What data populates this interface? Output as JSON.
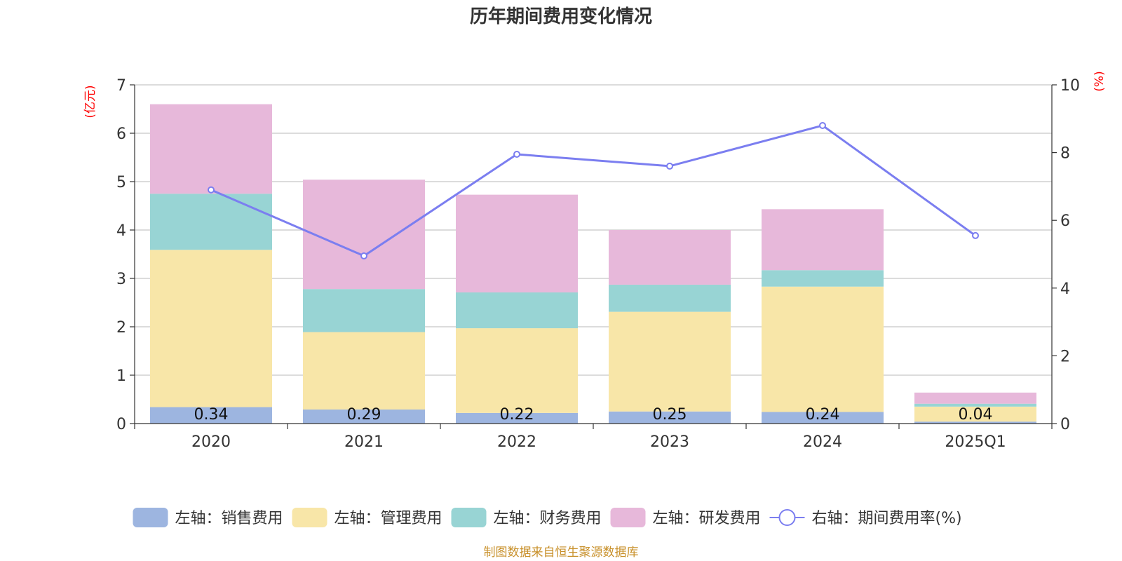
{
  "chart_data": {
    "type": "bar",
    "stacked": true,
    "title": "历年期间费用变化情况",
    "left_unit": "(亿元)",
    "right_unit": "(%)",
    "categories": [
      "2020",
      "2021",
      "2022",
      "2023",
      "2024",
      "2025Q1"
    ],
    "ylim_left": [
      0,
      7
    ],
    "yticks_left": [
      "0",
      "1",
      "2",
      "3",
      "4",
      "5",
      "6",
      "7"
    ],
    "ylim_right": [
      0,
      10
    ],
    "yticks_right": [
      "0",
      "2",
      "4",
      "6",
      "8",
      "10"
    ],
    "grid": true,
    "legend_position": "bottom",
    "series": [
      {
        "name": "左轴：销售费用",
        "type": "bar",
        "axis": "left",
        "color": "#9db5e0",
        "values": [
          0.34,
          0.29,
          0.22,
          0.25,
          0.24,
          0.04
        ],
        "labels": [
          "0.34",
          "0.29",
          "0.22",
          "0.25",
          "0.24",
          "0.04"
        ]
      },
      {
        "name": "左轴：管理费用",
        "type": "bar",
        "axis": "left",
        "color": "#f8e6a8",
        "values": [
          3.25,
          1.6,
          1.75,
          2.06,
          2.59,
          0.31
        ]
      },
      {
        "name": "左轴：财务费用",
        "type": "bar",
        "axis": "left",
        "color": "#98d4d4",
        "values": [
          1.16,
          0.89,
          0.74,
          0.56,
          0.34,
          0.06
        ]
      },
      {
        "name": "左轴：研发费用",
        "type": "bar",
        "axis": "left",
        "color": "#e7b8da",
        "values": [
          1.85,
          2.26,
          2.02,
          1.13,
          1.26,
          0.23
        ]
      },
      {
        "name": "右轴：期间费用率(%)",
        "type": "line",
        "axis": "right",
        "color": "#7b7ef0",
        "values": [
          6.9,
          4.95,
          7.95,
          7.6,
          8.8,
          5.55
        ]
      }
    ]
  },
  "source_text": "制图数据来自恒生聚源数据库"
}
